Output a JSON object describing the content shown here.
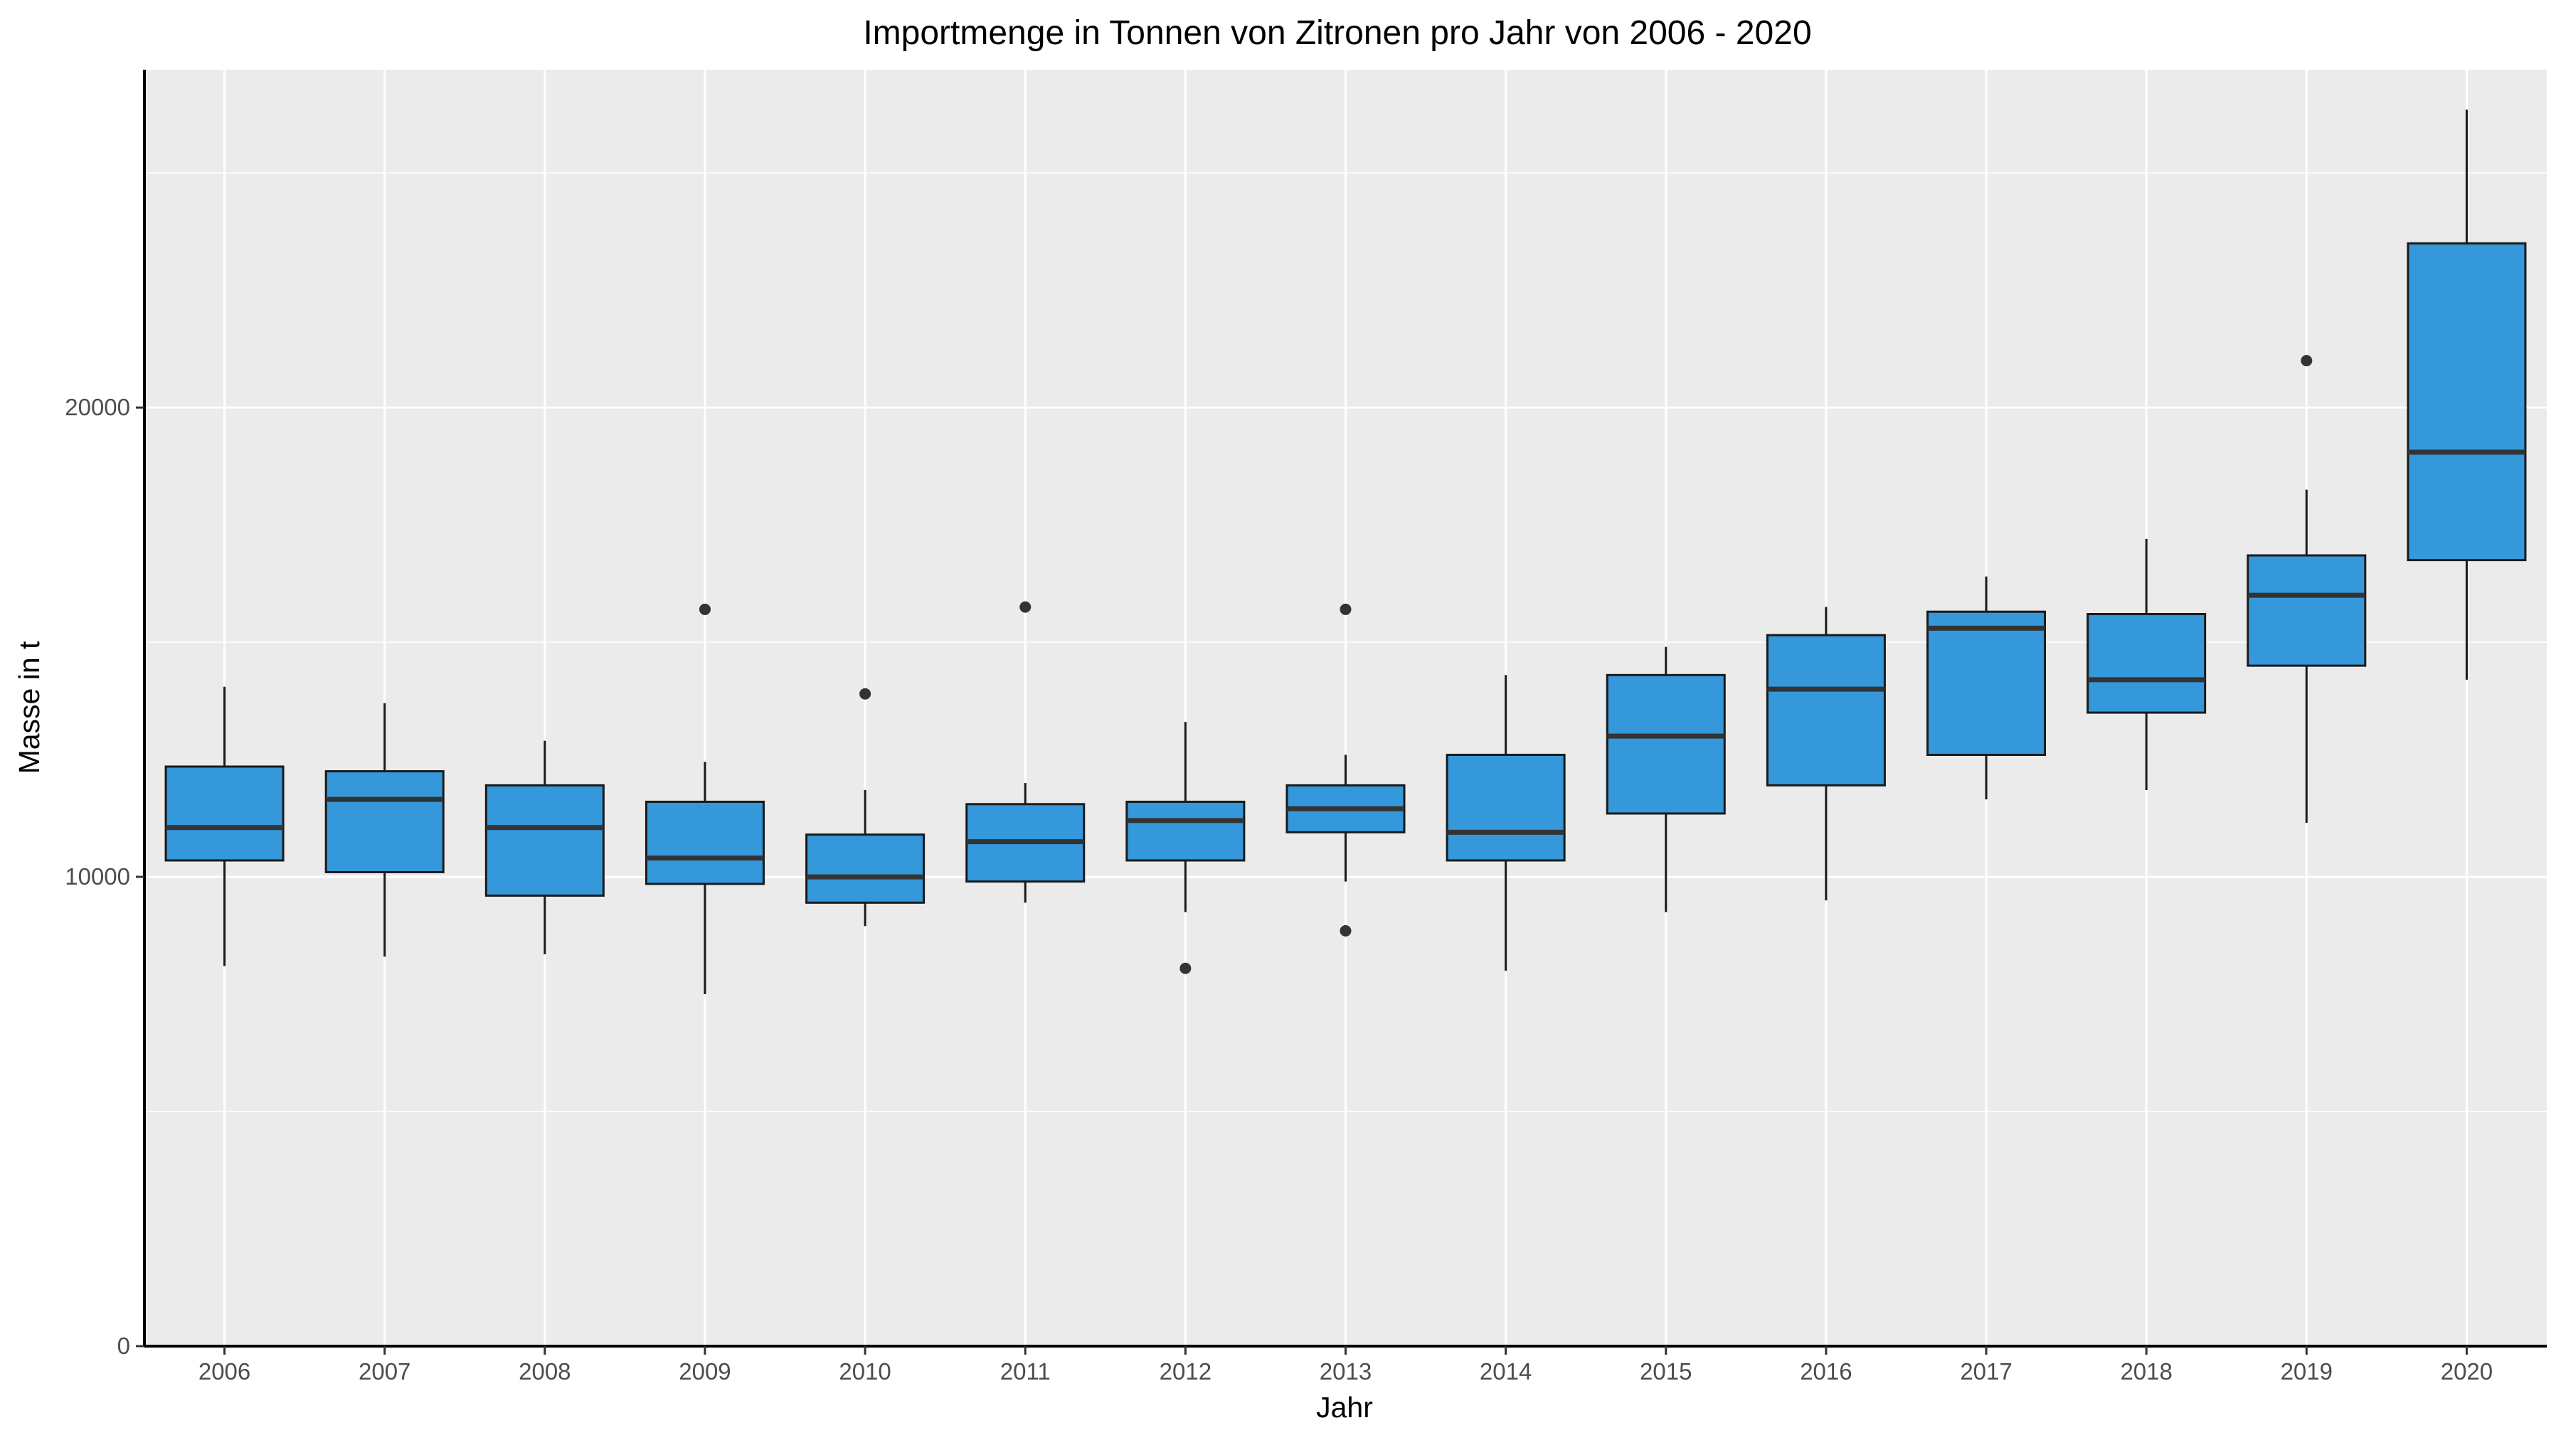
{
  "chart_data": {
    "type": "box",
    "title": "Importmenge in Tonnen von Zitronen pro Jahr von 2006 - 2020",
    "xlabel": "Jahr",
    "ylabel": "Masse in t",
    "ylim": [
      0,
      27200
    ],
    "yticks": [
      0,
      10000,
      20000
    ],
    "grid": true,
    "legend": "none",
    "colors": {
      "box_fill": "#3498DB",
      "panel": "#EBEBEB",
      "grid": "#FFFFFF",
      "outline": "#1a1a1a",
      "median": "#333333",
      "outlier": "#333333"
    },
    "categories": [
      "2006",
      "2007",
      "2008",
      "2009",
      "2010",
      "2011",
      "2012",
      "2013",
      "2014",
      "2015",
      "2016",
      "2017",
      "2018",
      "2019",
      "2020"
    ],
    "boxes": [
      {
        "year": "2006",
        "whisker_low": 8100,
        "q1": 10350,
        "median": 11050,
        "q3": 12350,
        "whisker_high": 14050,
        "outliers": []
      },
      {
        "year": "2007",
        "whisker_low": 8300,
        "q1": 10100,
        "median": 11650,
        "q3": 12250,
        "whisker_high": 13700,
        "outliers": []
      },
      {
        "year": "2008",
        "whisker_low": 8350,
        "q1": 9600,
        "median": 11050,
        "q3": 11950,
        "whisker_high": 12900,
        "outliers": []
      },
      {
        "year": "2009",
        "whisker_low": 7500,
        "q1": 9850,
        "median": 10400,
        "q3": 11600,
        "whisker_high": 12450,
        "outliers": [
          15700
        ]
      },
      {
        "year": "2010",
        "whisker_low": 8950,
        "q1": 9450,
        "median": 10000,
        "q3": 10900,
        "whisker_high": 11850,
        "outliers": [
          13900
        ]
      },
      {
        "year": "2011",
        "whisker_low": 9450,
        "q1": 9900,
        "median": 10750,
        "q3": 11550,
        "whisker_high": 12000,
        "outliers": [
          15750
        ]
      },
      {
        "year": "2012",
        "whisker_low": 9250,
        "q1": 10350,
        "median": 11200,
        "q3": 11600,
        "whisker_high": 13300,
        "outliers": [
          8050
        ]
      },
      {
        "year": "2013",
        "whisker_low": 9900,
        "q1": 10950,
        "median": 11450,
        "q3": 11950,
        "whisker_high": 12600,
        "outliers": [
          15700,
          8850
        ]
      },
      {
        "year": "2014",
        "whisker_low": 8000,
        "q1": 10350,
        "median": 10950,
        "q3": 12600,
        "whisker_high": 14300,
        "outliers": []
      },
      {
        "year": "2015",
        "whisker_low": 9250,
        "q1": 11350,
        "median": 13000,
        "q3": 14300,
        "whisker_high": 14900,
        "outliers": []
      },
      {
        "year": "2016",
        "whisker_low": 9500,
        "q1": 11950,
        "median": 14000,
        "q3": 15150,
        "whisker_high": 15750,
        "outliers": []
      },
      {
        "year": "2017",
        "whisker_low": 11650,
        "q1": 12600,
        "median": 15300,
        "q3": 15650,
        "whisker_high": 16400,
        "outliers": []
      },
      {
        "year": "2018",
        "whisker_low": 11850,
        "q1": 13500,
        "median": 14200,
        "q3": 15600,
        "whisker_high": 17200,
        "outliers": []
      },
      {
        "year": "2019",
        "whisker_low": 11150,
        "q1": 14500,
        "median": 16000,
        "q3": 16850,
        "whisker_high": 18250,
        "outliers": [
          21000
        ]
      },
      {
        "year": "2020",
        "whisker_low": 14200,
        "q1": 16750,
        "median": 19050,
        "q3": 23500,
        "whisker_high": 26350,
        "outliers": []
      }
    ]
  }
}
